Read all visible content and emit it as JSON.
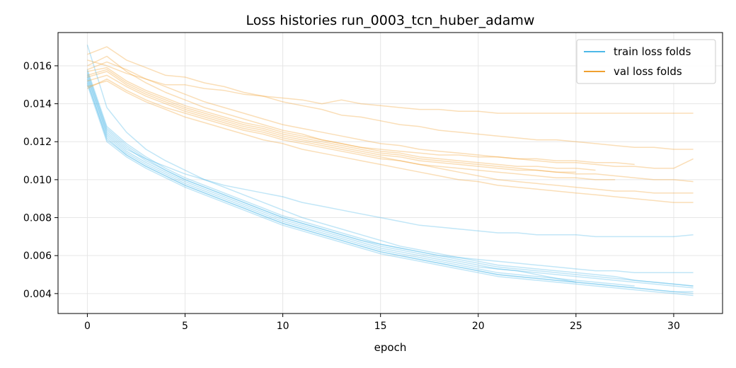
{
  "chart_data": {
    "type": "line",
    "title": "Loss histories run_0003_tcn_huber_adamw",
    "xlabel": "epoch",
    "ylabel": "",
    "xlim": [
      -1.5,
      32.5
    ],
    "ylim": [
      0.00295,
      0.01775
    ],
    "xticks": [
      0,
      5,
      10,
      15,
      20,
      25,
      30
    ],
    "yticks": [
      0.004,
      0.006,
      0.008,
      0.01,
      0.012,
      0.014,
      0.016
    ],
    "grid": true,
    "legend": {
      "placement": "top-right",
      "entries": [
        {
          "label": "train loss folds",
          "color": "#4db8e8"
        },
        {
          "label": "val loss folds",
          "color": "#f0a030"
        }
      ]
    },
    "series": [
      {
        "group": "train",
        "values": [
          0.0152,
          0.0121,
          0.0113,
          0.0107,
          0.0102,
          0.0097,
          0.0093,
          0.0089,
          0.0085,
          0.0081,
          0.0077,
          0.0074,
          0.0071,
          0.0068,
          0.0065,
          0.0062,
          0.006,
          0.0058,
          0.0056,
          0.0054,
          0.0052,
          0.005,
          0.0049,
          0.0048,
          0.0047,
          0.0046,
          0.0045,
          0.0044,
          0.0043,
          0.0042,
          0.0041,
          0.004
        ]
      },
      {
        "group": "train",
        "values": [
          0.0155,
          0.0124,
          0.0115,
          0.0109,
          0.0104,
          0.0099,
          0.0095,
          0.0091,
          0.0087,
          0.0083,
          0.0079,
          0.0076,
          0.0073,
          0.007,
          0.0067,
          0.0064,
          0.0062,
          0.006,
          0.0058,
          0.0056,
          0.0054,
          0.0053,
          0.0052,
          0.0051,
          0.005,
          0.0049,
          0.0048,
          0.0047,
          0.0046,
          0.0045,
          0.0044,
          0.0043
        ]
      },
      {
        "group": "train",
        "values": [
          0.0158,
          0.0128,
          0.0119,
          0.0112,
          0.0106,
          0.0101,
          0.0097,
          0.0093,
          0.0089,
          0.0085,
          0.0081,
          0.0078,
          0.0075,
          0.0072,
          0.0069,
          0.0066,
          0.0064,
          0.0062,
          0.006,
          0.0058,
          0.0056,
          0.0054,
          0.0053,
          0.0052,
          0.0051,
          0.005,
          0.0049,
          0.0048,
          0.0047,
          0.0046,
          0.0045,
          0.0044
        ]
      },
      {
        "group": "train",
        "values": [
          0.0171,
          0.0138,
          0.0125,
          0.0116,
          0.011,
          0.0105,
          0.01,
          0.0096,
          0.0092,
          0.0088,
          0.0084,
          0.008,
          0.0077,
          0.0074,
          0.0071,
          0.0068,
          0.0065,
          0.0063,
          0.0061,
          0.0059,
          0.0057,
          0.0055,
          0.0054,
          0.0053,
          0.0052,
          0.0051,
          0.005,
          0.0049,
          0.0047,
          0.0046,
          0.0045,
          0.0044
        ]
      },
      {
        "group": "train",
        "values": [
          0.015,
          0.012,
          0.0112,
          0.0106,
          0.0101,
          0.0096,
          0.0092,
          0.0088,
          0.0084,
          0.008,
          0.0076,
          0.0073,
          0.007,
          0.0067,
          0.0064,
          0.0061,
          0.0059,
          0.0057,
          0.0055,
          0.0053,
          0.0051,
          0.0049,
          0.0048,
          0.0047,
          0.0046,
          0.0045,
          0.0044,
          0.0043,
          0.0042,
          0.0041,
          0.004,
          0.0039
        ]
      },
      {
        "group": "train",
        "values": [
          0.0157,
          0.0126,
          0.0117,
          0.011,
          0.0105,
          0.01,
          0.0096,
          0.0092,
          0.0088,
          0.0084,
          0.008,
          0.0077,
          0.0074,
          0.0071,
          0.0068,
          0.0065,
          0.0063,
          0.0061,
          0.0059,
          0.0057,
          0.0055,
          0.0053,
          0.0052,
          0.005,
          0.0048,
          0.0046
        ]
      },
      {
        "group": "train",
        "values": [
          0.0153,
          0.0123,
          0.0114,
          0.0108,
          0.0103,
          0.0098,
          0.0094,
          0.009,
          0.0086,
          0.0082,
          0.0078,
          0.0075,
          0.0072,
          0.0069,
          0.0066,
          0.0063,
          0.0061,
          0.0059,
          0.0057,
          0.0055,
          0.0053,
          0.0051,
          0.005,
          0.0049,
          0.0048,
          0.0047,
          0.0046,
          0.0045,
          0.0044
        ]
      },
      {
        "group": "train",
        "values": [
          0.0154,
          0.0125,
          0.0116,
          0.0111,
          0.0107,
          0.0103,
          0.01,
          0.0097,
          0.0095,
          0.0093,
          0.0091,
          0.0088,
          0.0086,
          0.0084,
          0.0082,
          0.008,
          0.0078,
          0.0076,
          0.0075,
          0.0074,
          0.0073,
          0.0072,
          0.0072,
          0.0071,
          0.0071,
          0.0071,
          0.007,
          0.007,
          0.007,
          0.007,
          0.007,
          0.0071
        ]
      },
      {
        "group": "train",
        "values": [
          0.0156,
          0.0127,
          0.0118,
          0.0111,
          0.0105,
          0.01,
          0.0096,
          0.0092,
          0.0088,
          0.0084,
          0.008,
          0.0077,
          0.0074,
          0.0071,
          0.0068,
          0.0066,
          0.0064,
          0.0062,
          0.006,
          0.0059,
          0.0058,
          0.0057,
          0.0056,
          0.0055,
          0.0054,
          0.0053,
          0.0052,
          0.0052,
          0.0051,
          0.0051,
          0.0051,
          0.0051
        ]
      },
      {
        "group": "train",
        "values": [
          0.0151,
          0.0122,
          0.0113,
          0.0107,
          0.0102,
          0.0097,
          0.0093,
          0.0089,
          0.0085,
          0.0081,
          0.0077,
          0.0074,
          0.0071,
          0.0068,
          0.0065,
          0.0062,
          0.006,
          0.0058,
          0.0056,
          0.0054,
          0.0052,
          0.005,
          0.0049,
          0.0048,
          0.0047,
          0.0046,
          0.0045,
          0.0044,
          0.0043,
          0.0042,
          0.0041,
          0.0041
        ]
      },
      {
        "group": "val",
        "values": [
          0.0163,
          0.016,
          0.0156,
          0.0153,
          0.015,
          0.015,
          0.0148,
          0.0147,
          0.0145,
          0.0144,
          0.0143,
          0.0142,
          0.014,
          0.0142,
          0.014,
          0.0139,
          0.0138,
          0.0137,
          0.0137,
          0.0136,
          0.0136,
          0.0135,
          0.0135,
          0.0135,
          0.0135,
          0.0135,
          0.0135,
          0.0135,
          0.0135,
          0.0135,
          0.0135,
          0.0135
        ]
      },
      {
        "group": "val",
        "values": [
          0.0166,
          0.017,
          0.0163,
          0.0159,
          0.0155,
          0.0154,
          0.0151,
          0.0149,
          0.0146,
          0.0144,
          0.0141,
          0.0139,
          0.0137,
          0.0134,
          0.0133,
          0.0131,
          0.0129,
          0.0128,
          0.0126,
          0.0125,
          0.0124,
          0.0123,
          0.0122,
          0.0121,
          0.0121,
          0.012,
          0.0119,
          0.0118,
          0.0117,
          0.0117,
          0.0116,
          0.0116
        ]
      },
      {
        "group": "val",
        "values": [
          0.0158,
          0.0162,
          0.0158,
          0.0153,
          0.0149,
          0.0145,
          0.0141,
          0.0138,
          0.0135,
          0.0132,
          0.0129,
          0.0127,
          0.0125,
          0.0123,
          0.0121,
          0.0119,
          0.0118,
          0.0116,
          0.0115,
          0.0114,
          0.0113,
          0.0112,
          0.0111,
          0.011,
          0.0109,
          0.0109,
          0.0108,
          0.0107,
          0.0107,
          0.0106,
          0.0106,
          0.0111
        ]
      },
      {
        "group": "val",
        "values": [
          0.0155,
          0.0158,
          0.0151,
          0.0146,
          0.0142,
          0.0138,
          0.0135,
          0.0132,
          0.0129,
          0.0127,
          0.0124,
          0.0122,
          0.012,
          0.0118,
          0.0116,
          0.0114,
          0.0113,
          0.0111,
          0.011,
          0.0109,
          0.0108,
          0.0107,
          0.0106,
          0.0105,
          0.0104,
          0.0103,
          0.0103,
          0.0102,
          0.0101,
          0.01,
          0.01,
          0.0099
        ]
      },
      {
        "group": "val",
        "values": [
          0.0152,
          0.0155,
          0.0149,
          0.0144,
          0.014,
          0.0136,
          0.0133,
          0.013,
          0.0127,
          0.0125,
          0.0122,
          0.012,
          0.0118,
          0.0116,
          0.0114,
          0.0112,
          0.011,
          0.0108,
          0.0106,
          0.0104,
          0.0102,
          0.01,
          0.0099,
          0.0098,
          0.0097,
          0.0096,
          0.0095,
          0.0094,
          0.0094,
          0.0093,
          0.0093,
          0.0093
        ]
      },
      {
        "group": "val",
        "values": [
          0.0149,
          0.0152,
          0.0146,
          0.0141,
          0.0137,
          0.0133,
          0.013,
          0.0127,
          0.0124,
          0.0121,
          0.0119,
          0.0116,
          0.0114,
          0.0112,
          0.011,
          0.0108,
          0.0106,
          0.0104,
          0.0102,
          0.01,
          0.0099,
          0.0097,
          0.0096,
          0.0095,
          0.0094,
          0.0093,
          0.0092,
          0.0091,
          0.009,
          0.0089,
          0.0088,
          0.0088
        ]
      },
      {
        "group": "val",
        "values": [
          0.016,
          0.0165,
          0.0157,
          0.0151,
          0.0146,
          0.0142,
          0.0138,
          0.0135,
          0.0132,
          0.0129,
          0.0126,
          0.0124,
          0.0121,
          0.0119,
          0.0117,
          0.0116,
          0.0115,
          0.0114,
          0.0113,
          0.0113,
          0.0112,
          0.0112,
          0.0111,
          0.0111,
          0.011,
          0.011,
          0.0109,
          0.0109,
          0.0108
        ]
      },
      {
        "group": "val",
        "values": [
          0.0154,
          0.0157,
          0.015,
          0.0145,
          0.0141,
          0.0137,
          0.0134,
          0.0131,
          0.0128,
          0.0126,
          0.0123,
          0.0121,
          0.0119,
          0.0117,
          0.0115,
          0.0113,
          0.0112,
          0.011,
          0.0109,
          0.0108,
          0.0107,
          0.0106,
          0.0105,
          0.0105,
          0.0104,
          0.0104
        ]
      },
      {
        "group": "val",
        "values": [
          0.0148,
          0.0153,
          0.0147,
          0.0142,
          0.0138,
          0.0135,
          0.0132,
          0.0129,
          0.0126,
          0.0124,
          0.0121,
          0.0119,
          0.0117,
          0.0115,
          0.0113,
          0.0111,
          0.011,
          0.0108,
          0.0107,
          0.0106,
          0.0105,
          0.0104,
          0.0103,
          0.0102,
          0.0101,
          0.0101,
          0.01,
          0.01
        ]
      },
      {
        "group": "val",
        "values": [
          0.0157,
          0.0159,
          0.0152,
          0.0147,
          0.0143,
          0.0139,
          0.0136,
          0.0133,
          0.013,
          0.0128,
          0.0125,
          0.0123,
          0.0121,
          0.0119,
          0.0117,
          0.0115,
          0.0114,
          0.0112,
          0.0111,
          0.011,
          0.0109,
          0.0108,
          0.0107,
          0.0107,
          0.0106,
          0.0106,
          0.0105
        ]
      }
    ]
  }
}
